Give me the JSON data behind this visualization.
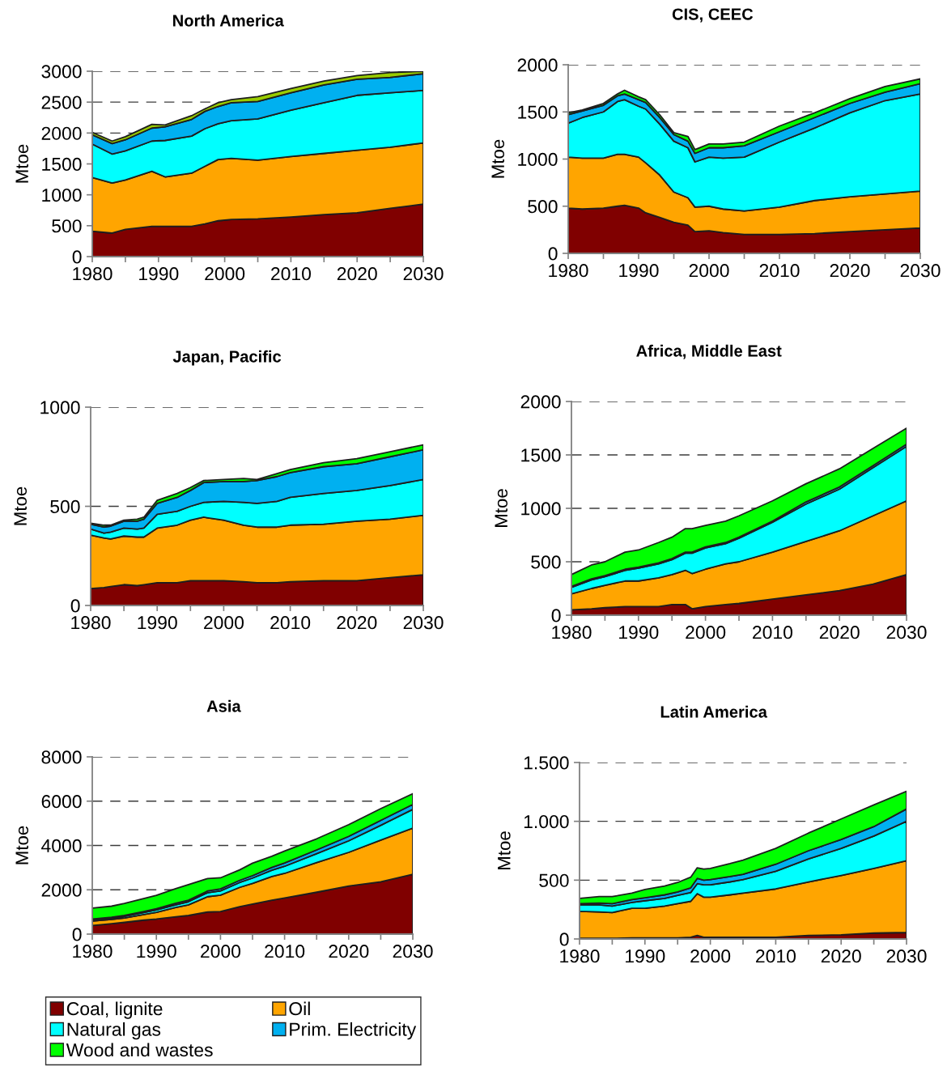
{
  "chart_data": [
    {
      "type": "area",
      "stacked": true,
      "title": "North America",
      "ylabel": "Mtoe",
      "grid": "y",
      "x": [
        1980,
        1983,
        1985,
        1989,
        1991,
        1995,
        1997,
        1999,
        2001,
        2005,
        2010,
        2015,
        2020,
        2025,
        2030
      ],
      "xlim": [
        1980,
        2030
      ],
      "xticks": [
        1980,
        {
          "value": 1985,
          "label": null
        },
        1990,
        {
          "value": 1995,
          "label": null
        },
        2000,
        {
          "value": 2005,
          "label": null
        },
        2010,
        {
          "value": 2015,
          "label": null
        },
        2020,
        {
          "value": 2025,
          "label": null
        },
        2030
      ],
      "ylim": [
        0,
        3000
      ],
      "yticks": [
        0,
        500,
        1000,
        1500,
        2000,
        2500,
        3000
      ],
      "series": [
        {
          "color": "#800000",
          "values": [
            410,
            380,
            440,
            490,
            490,
            490,
            530,
            580,
            600,
            610,
            640,
            680,
            710,
            780,
            850
          ]
        },
        {
          "color": "#ffa500",
          "values": [
            870,
            810,
            800,
            890,
            800,
            860,
            930,
            990,
            990,
            950,
            980,
            990,
            1010,
            990,
            990
          ]
        },
        {
          "color": "#00ffff",
          "values": [
            540,
            470,
            470,
            490,
            590,
            600,
            610,
            580,
            610,
            670,
            750,
            820,
            890,
            880,
            850
          ]
        },
        {
          "color": "#00b0f0",
          "values": [
            150,
            170,
            180,
            210,
            220,
            270,
            280,
            280,
            290,
            280,
            280,
            290,
            260,
            250,
            270
          ]
        },
        {
          "color": "#99cc00",
          "values": [
            40,
            40,
            50,
            60,
            30,
            60,
            40,
            60,
            50,
            80,
            70,
            60,
            60,
            80,
            40
          ]
        }
      ]
    },
    {
      "type": "area",
      "stacked": true,
      "title": "CIS, CEEC",
      "ylabel": "Mtoe",
      "grid": "y",
      "x": [
        1980,
        1982,
        1985,
        1987,
        1988,
        1990,
        1991,
        1993,
        1995,
        1997,
        1998,
        2000,
        2002,
        2005,
        2010,
        2015,
        2020,
        2025,
        2030
      ],
      "xlim": [
        1980,
        2030
      ],
      "xticks": [
        1980,
        {
          "value": 1985,
          "label": null
        },
        1990,
        {
          "value": 1995,
          "label": null
        },
        2000,
        {
          "value": 2005,
          "label": null
        },
        2010,
        {
          "value": 2015,
          "label": null
        },
        2020,
        {
          "value": 2025,
          "label": null
        },
        2030
      ],
      "ylim": [
        0,
        2000
      ],
      "yticks": [
        0,
        500,
        1000,
        1500,
        2000
      ],
      "series": [
        {
          "color": "#800000",
          "values": [
            480,
            470,
            480,
            500,
            510,
            480,
            430,
            380,
            330,
            300,
            230,
            240,
            220,
            200,
            200,
            210,
            230,
            250,
            270
          ]
        },
        {
          "color": "#ffa500",
          "values": [
            540,
            540,
            530,
            550,
            540,
            540,
            530,
            450,
            320,
            290,
            260,
            260,
            250,
            250,
            290,
            350,
            370,
            380,
            390
          ]
        },
        {
          "color": "#00ffff",
          "values": [
            360,
            430,
            490,
            560,
            580,
            540,
            570,
            540,
            540,
            530,
            480,
            520,
            540,
            570,
            690,
            770,
            890,
            990,
            1030
          ]
        },
        {
          "color": "#00b0f0",
          "values": [
            90,
            70,
            70,
            60,
            60,
            70,
            70,
            70,
            70,
            70,
            90,
            100,
            110,
            120,
            110,
            110,
            100,
            90,
            110
          ]
        },
        {
          "color": "#00ff00",
          "values": [
            20,
            10,
            20,
            20,
            40,
            30,
            30,
            30,
            20,
            50,
            40,
            40,
            40,
            40,
            60,
            50,
            50,
            60,
            50
          ]
        }
      ]
    },
    {
      "type": "area",
      "stacked": true,
      "title": "Japan, Pacific",
      "ylabel": "Mtoe",
      "grid": "y",
      "x": [
        1980,
        1982,
        1983,
        1985,
        1987,
        1988,
        1990,
        1993,
        1995,
        1997,
        2000,
        2003,
        2005,
        2008,
        2010,
        2015,
        2020,
        2025,
        2030
      ],
      "xlim": [
        1980,
        2030
      ],
      "xticks": [
        1980,
        {
          "value": 1985,
          "label": null
        },
        1990,
        {
          "value": 1995,
          "label": null
        },
        2000,
        {
          "value": 2005,
          "label": null
        },
        2010,
        {
          "value": 2015,
          "label": null
        },
        2020,
        {
          "value": 2025,
          "label": null
        },
        2030
      ],
      "ylim": [
        0,
        1000
      ],
      "yticks": [
        0,
        500,
        1000
      ],
      "series": [
        {
          "color": "#800000",
          "values": [
            85,
            90,
            95,
            105,
            100,
            105,
            115,
            115,
            125,
            125,
            125,
            120,
            115,
            115,
            120,
            125,
            125,
            140,
            155
          ]
        },
        {
          "color": "#ffa500",
          "values": [
            270,
            250,
            240,
            245,
            245,
            240,
            275,
            290,
            305,
            320,
            305,
            285,
            280,
            280,
            285,
            285,
            300,
            295,
            300
          ]
        },
        {
          "color": "#00ffff",
          "values": [
            30,
            25,
            35,
            40,
            40,
            45,
            70,
            70,
            70,
            75,
            95,
            115,
            120,
            130,
            140,
            155,
            155,
            170,
            180
          ]
        },
        {
          "color": "#00b0f0",
          "values": [
            25,
            30,
            30,
            35,
            40,
            45,
            55,
            70,
            80,
            100,
            100,
            105,
            115,
            125,
            125,
            135,
            135,
            145,
            150
          ]
        },
        {
          "color": "#00ff00",
          "values": [
            5,
            10,
            5,
            5,
            10,
            10,
            15,
            20,
            15,
            10,
            10,
            15,
            5,
            15,
            15,
            20,
            25,
            25,
            25
          ]
        }
      ]
    },
    {
      "type": "area",
      "stacked": true,
      "title": "Africa, Middle East",
      "ylabel": "Mtoe",
      "grid": "y",
      "x": [
        1980,
        1983,
        1985,
        1988,
        1990,
        1993,
        1995,
        1997,
        1998,
        2000,
        2003,
        2005,
        2010,
        2015,
        2020,
        2025,
        2030
      ],
      "xlim": [
        1980,
        2030
      ],
      "xticks": [
        1980,
        {
          "value": 1985,
          "label": null
        },
        1990,
        {
          "value": 1995,
          "label": null
        },
        2000,
        {
          "value": 2005,
          "label": null
        },
        2010,
        {
          "value": 2015,
          "label": null
        },
        2020,
        {
          "value": 2025,
          "label": null
        },
        2030
      ],
      "ylim": [
        0,
        2000
      ],
      "yticks": [
        0,
        500,
        1000,
        1500,
        2000
      ],
      "series": [
        {
          "color": "#800000",
          "values": [
            50,
            60,
            70,
            80,
            80,
            80,
            100,
            100,
            60,
            80,
            100,
            110,
            150,
            190,
            230,
            290,
            380
          ]
        },
        {
          "color": "#ffa500",
          "values": [
            150,
            190,
            210,
            240,
            240,
            270,
            280,
            320,
            330,
            350,
            380,
            390,
            440,
            500,
            560,
            640,
            690
          ]
        },
        {
          "color": "#00ffff",
          "values": [
            60,
            80,
            80,
            100,
            120,
            130,
            140,
            160,
            190,
            200,
            190,
            220,
            280,
            350,
            390,
            450,
            510
          ]
        },
        {
          "color": "#00b0f0",
          "values": [
            10,
            10,
            10,
            10,
            10,
            10,
            10,
            10,
            10,
            10,
            10,
            10,
            10,
            20,
            20,
            20,
            20
          ]
        },
        {
          "color": "#00ff00",
          "values": [
            110,
            130,
            130,
            160,
            160,
            190,
            200,
            220,
            220,
            200,
            200,
            200,
            190,
            170,
            170,
            160,
            150
          ]
        }
      ]
    },
    {
      "type": "area",
      "stacked": true,
      "title": "Asia",
      "ylabel": "Mtoe",
      "grid": "y",
      "legend": "bottom",
      "x": [
        1980,
        1983,
        1985,
        1988,
        1990,
        1993,
        1995,
        1998,
        2000,
        2003,
        2005,
        2008,
        2010,
        2015,
        2020,
        2025,
        2030
      ],
      "xlim": [
        1980,
        2030
      ],
      "xticks": [
        1980,
        {
          "value": 1985,
          "label": null
        },
        1990,
        {
          "value": 1995,
          "label": null
        },
        2000,
        {
          "value": 2005,
          "label": null
        },
        2010,
        {
          "value": 2015,
          "label": null
        },
        2020,
        {
          "value": 2025,
          "label": null
        },
        2030
      ],
      "ylim": [
        0,
        8000
      ],
      "yticks": [
        0,
        2000,
        4000,
        6000,
        8000
      ],
      "series": [
        {
          "name": "Coal, lignite",
          "color": "#800000",
          "values": [
            390,
            470,
            530,
            630,
            680,
            780,
            840,
            1000,
            1020,
            1240,
            1360,
            1530,
            1630,
            1890,
            2170,
            2360,
            2700
          ]
        },
        {
          "name": "Oil",
          "color": "#ffa500",
          "values": [
            200,
            190,
            200,
            250,
            300,
            420,
            480,
            690,
            740,
            870,
            930,
            1070,
            1110,
            1340,
            1520,
            1880,
            2080
          ]
        },
        {
          "name": "Natural gas",
          "color": "#00ffff",
          "values": [
            60,
            60,
            70,
            90,
            110,
            120,
            140,
            180,
            190,
            220,
            240,
            280,
            320,
            400,
            520,
            670,
            850
          ]
        },
        {
          "name": "Prim. Electricity",
          "color": "#00b0f0",
          "values": [
            30,
            40,
            40,
            50,
            60,
            70,
            70,
            80,
            90,
            100,
            110,
            130,
            150,
            170,
            200,
            220,
            220
          ]
        },
        {
          "name": "Wood and wastes",
          "color": "#00ff00",
          "values": [
            490,
            500,
            540,
            580,
            600,
            660,
            700,
            560,
            500,
            470,
            560,
            500,
            540,
            500,
            530,
            530,
            490
          ]
        }
      ]
    },
    {
      "type": "area",
      "stacked": true,
      "title": "Latin America",
      "ylabel": "Mtoe",
      "grid": "y",
      "x": [
        1980,
        1983,
        1985,
        1988,
        1990,
        1993,
        1995,
        1997,
        1998,
        1999,
        2000,
        2003,
        2005,
        2010,
        2015,
        2020,
        2025,
        2030
      ],
      "xlim": [
        1980,
        2030
      ],
      "xticks": [
        1980,
        {
          "value": 1985,
          "label": null
        },
        1990,
        {
          "value": 1995,
          "label": null
        },
        2000,
        {
          "value": 2005,
          "label": null
        },
        2010,
        {
          "value": 2015,
          "label": null
        },
        2020,
        {
          "value": 2025,
          "label": null
        },
        2030
      ],
      "ylim": [
        0,
        1500
      ],
      "yticks": [
        0,
        500,
        {
          "value": 1000,
          "label": "1.000"
        },
        {
          "value": 1500,
          "label": "1.500"
        }
      ],
      "series": [
        {
          "color": "#800000",
          "values": [
            5,
            5,
            5,
            10,
            10,
            10,
            10,
            15,
            30,
            15,
            15,
            15,
            15,
            15,
            30,
            35,
            50,
            55
          ]
        },
        {
          "color": "#ffa500",
          "values": [
            230,
            225,
            220,
            250,
            250,
            270,
            290,
            305,
            355,
            340,
            340,
            360,
            375,
            410,
            455,
            505,
            550,
            610
          ]
        },
        {
          "color": "#00ffff",
          "values": [
            55,
            60,
            55,
            50,
            65,
            65,
            70,
            75,
            85,
            105,
            105,
            110,
            115,
            150,
            195,
            230,
            275,
            335
          ]
        },
        {
          "color": "#00b0f0",
          "values": [
            10,
            15,
            20,
            25,
            25,
            30,
            30,
            40,
            45,
            40,
            45,
            45,
            45,
            60,
            70,
            75,
            80,
            105
          ]
        },
        {
          "color": "#00ff00",
          "values": [
            45,
            55,
            60,
            55,
            70,
            75,
            80,
            90,
            90,
            95,
            95,
            110,
            120,
            135,
            150,
            175,
            185,
            150
          ]
        }
      ]
    }
  ]
}
